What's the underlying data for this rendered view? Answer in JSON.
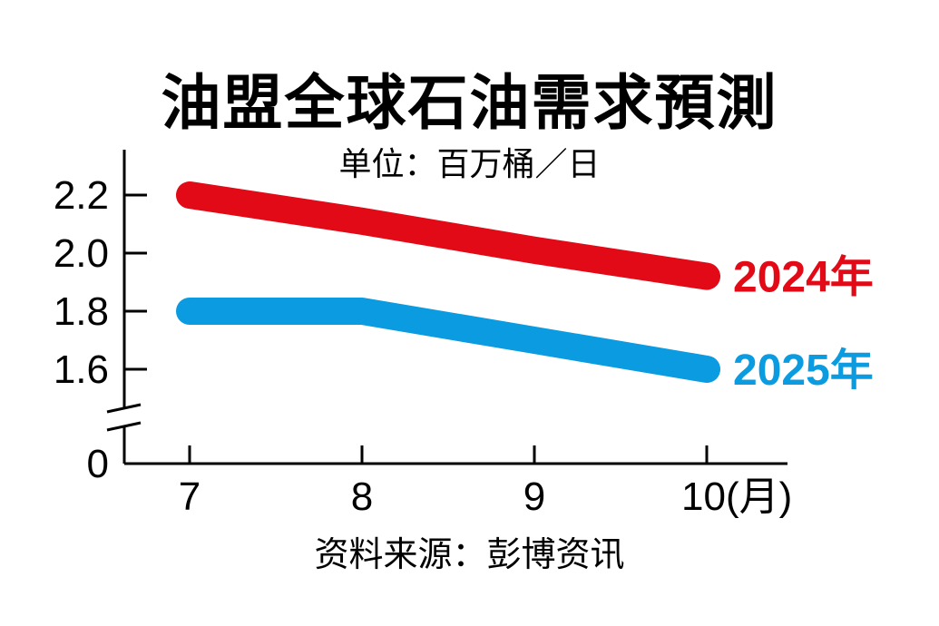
{
  "title": "油盟全球石油需求預測",
  "unit": "单位：百万桶／日",
  "source": "资料来源：彭博资讯",
  "chart_data": {
    "type": "line",
    "title": "油盟全球石油需求預測",
    "subtitle": "单位：百万桶／日",
    "xlabel": "(月)",
    "ylabel": "",
    "categories": [
      "7",
      "8",
      "9",
      "10"
    ],
    "x_tick_labels": [
      "7",
      "8",
      "9",
      "10(月)"
    ],
    "y_tick_labels": [
      "0",
      "1.6",
      "1.8",
      "2.0",
      "2.2"
    ],
    "ylim": [
      0,
      2.3
    ],
    "y_axis_break": "between 0 and 1.6",
    "grid": false,
    "legend_position": "right, inline labels at line ends",
    "series": [
      {
        "name": "2024年",
        "color": "#E20A17",
        "values": [
          2.2,
          2.11,
          2.01,
          1.92
        ]
      },
      {
        "name": "2025年",
        "color": "#0A9BE0",
        "values": [
          1.8,
          1.8,
          1.7,
          1.6
        ]
      }
    ],
    "annotation": "资料来源：彭博资讯"
  }
}
